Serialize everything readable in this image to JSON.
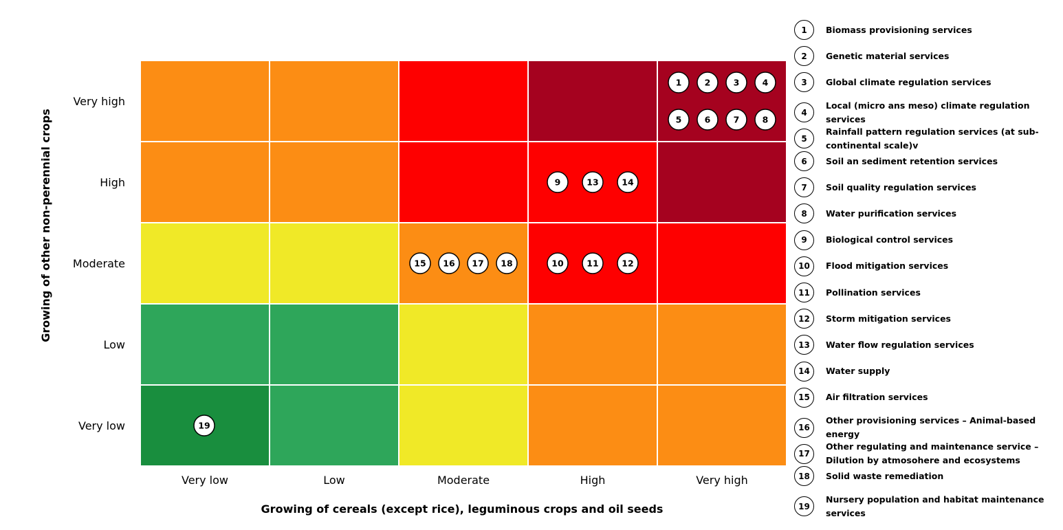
{
  "chart_data": {
    "type": "heatmap",
    "title": "",
    "xlabel": "Growing of cereals (except rice), leguminous crops and oil seeds",
    "ylabel": "Growing of other non-perennial crops",
    "x_categories": [
      "Very low",
      "Low",
      "Moderate",
      "High",
      "Very high"
    ],
    "y_categories": [
      "Very high",
      "High",
      "Moderate",
      "Low",
      "Very low"
    ],
    "colors": {
      "dark-green": "#198e3e",
      "green": "#2ea65a",
      "yellow": "#f0e927",
      "orange": "#fc8d14",
      "red": "#fe0000",
      "dark-red": "#a5021f"
    },
    "cells": [
      [
        "orange",
        "orange",
        "red",
        "dark-red",
        "dark-red"
      ],
      [
        "orange",
        "orange",
        "red",
        "red",
        "dark-red"
      ],
      [
        "yellow",
        "yellow",
        "orange",
        "red",
        "red"
      ],
      [
        "green",
        "green",
        "yellow",
        "orange",
        "orange"
      ],
      [
        "dark-green",
        "green",
        "yellow",
        "orange",
        "orange"
      ]
    ],
    "markers": [
      {
        "x": "Very high",
        "y": "Very high",
        "ids": [
          "1",
          "2",
          "3",
          "4",
          "5",
          "6",
          "7",
          "8"
        ]
      },
      {
        "x": "High",
        "y": "High",
        "ids": [
          "9",
          "13",
          "14"
        ]
      },
      {
        "x": "Moderate",
        "y": "Moderate",
        "ids": [
          "15",
          "16",
          "17",
          "18"
        ]
      },
      {
        "x": "High",
        "y": "Moderate",
        "ids": [
          "10",
          "11",
          "12"
        ]
      },
      {
        "x": "Very low",
        "y": "Very low",
        "ids": [
          "19"
        ]
      }
    ],
    "legend": [
      {
        "id": "1",
        "label": "Biomass provisioning services"
      },
      {
        "id": "2",
        "label": "Genetic material services"
      },
      {
        "id": "3",
        "label": "Global climate regulation services"
      },
      {
        "id": "4",
        "label": "Local (micro ans meso) climate regulation services"
      },
      {
        "id": "5",
        "label": "Rainfall pattern regulation services (at sub-continental scale)v"
      },
      {
        "id": "6",
        "label": "Soil an sediment retention services"
      },
      {
        "id": "7",
        "label": "Soil quality regulation services"
      },
      {
        "id": "8",
        "label": "Water purification services"
      },
      {
        "id": "9",
        "label": "Biological control services"
      },
      {
        "id": "10",
        "label": "Flood mitigation services"
      },
      {
        "id": "11",
        "label": "Pollination services"
      },
      {
        "id": "12",
        "label": "Storm mitigation services"
      },
      {
        "id": "13",
        "label": "Water flow regulation services"
      },
      {
        "id": "14",
        "label": "Water supply"
      },
      {
        "id": "15",
        "label": "Air filtration services"
      },
      {
        "id": "16",
        "label": "Other provisioning services – Animal-based energy"
      },
      {
        "id": "17",
        "label": "Other regulating and maintenance service – Dilution by atmosohere and ecosystems"
      },
      {
        "id": "18",
        "label": "Solid waste remediation"
      },
      {
        "id": "19",
        "label": "Nursery population and habitat maintenance services"
      }
    ],
    "legend_placement": "right",
    "grid": true
  }
}
